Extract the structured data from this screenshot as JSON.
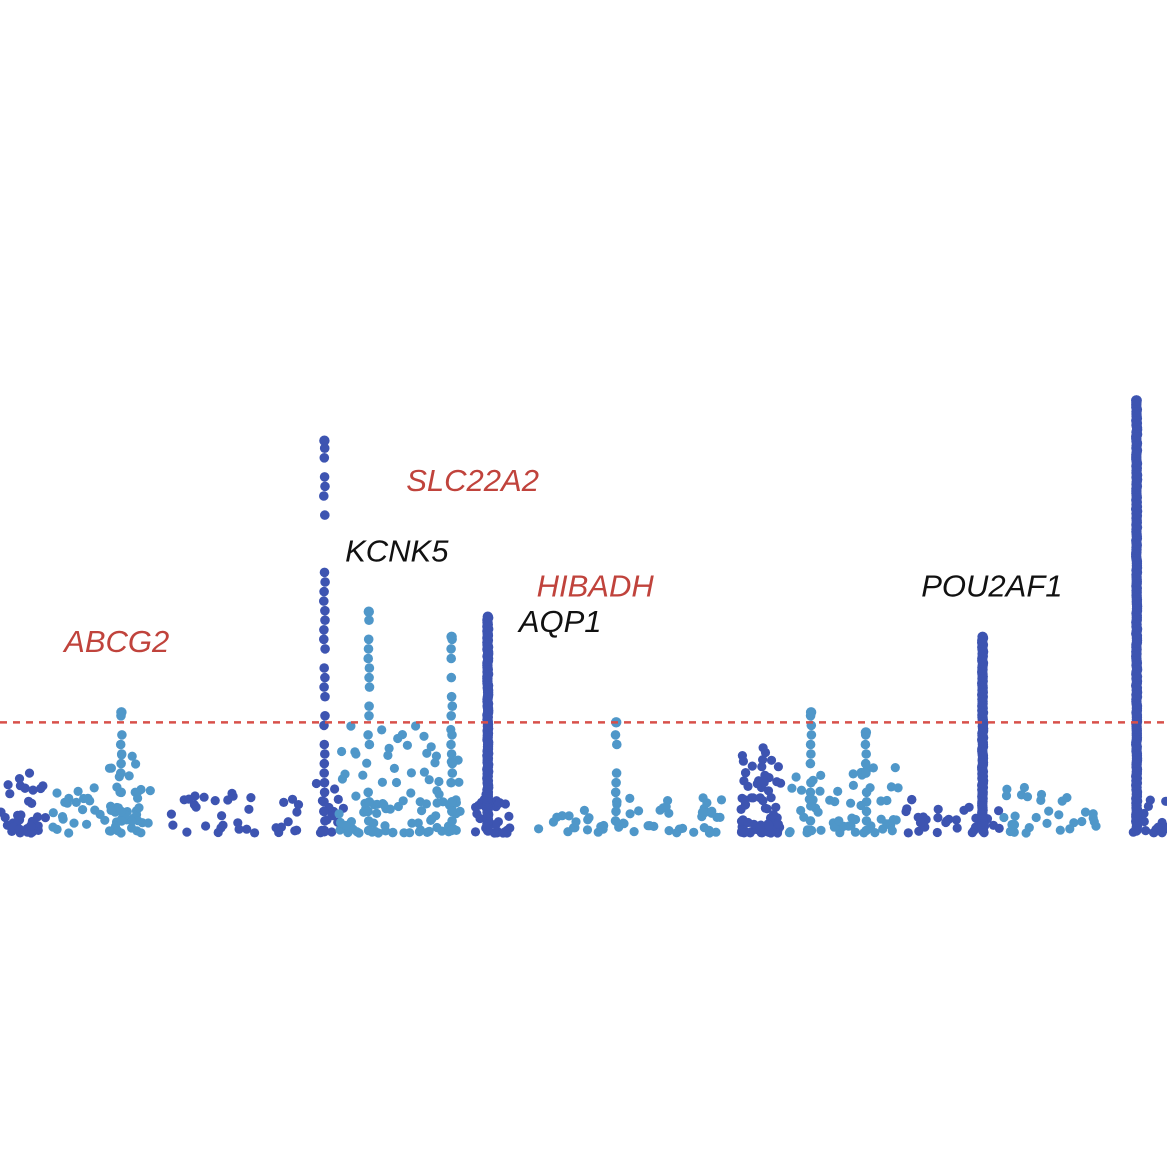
{
  "colors": {
    "background": "#ffffff",
    "dark_blue": "#3d54b1",
    "light_blue": "#4f97c9",
    "threshold": "#d8504a",
    "label_red": "#c0433c",
    "label_black": "#111111"
  },
  "chart_data": {
    "type": "scatter",
    "subtype": "manhattan",
    "title": "",
    "xlabel": "",
    "ylabel": "",
    "grid": false,
    "legend": "none",
    "axes_visible": false,
    "ylim": [
      0,
      10
    ],
    "threshold": 2.2,
    "annotations": [
      {
        "text": "ABCG2",
        "color": "label_red",
        "x": 10,
        "y": 3.6
      },
      {
        "text": "SLC22A2",
        "color": "label_red",
        "x": 40.5,
        "y": 6.8
      },
      {
        "text": "KCNK5",
        "color": "label_black",
        "x": 34,
        "y": 5.4
      },
      {
        "text": "HIBADH",
        "color": "label_red",
        "x": 51,
        "y": 4.7
      },
      {
        "text": "AQP1",
        "color": "label_black",
        "x": 48,
        "y": 4.0
      },
      {
        "text": "POU2AF1",
        "color": "label_black",
        "x": 85,
        "y": 4.7
      }
    ],
    "peaks": [
      {
        "x": 27.8,
        "top": 7.8,
        "color": "dark_blue",
        "style": "sparse"
      },
      {
        "x": 41.8,
        "top": 4.3,
        "color": "dark_blue",
        "style": "dense"
      },
      {
        "x": 84.2,
        "top": 3.9,
        "color": "dark_blue",
        "style": "dense"
      },
      {
        "x": 97.4,
        "top": 8.6,
        "color": "dark_blue",
        "style": "dense"
      },
      {
        "x": 10.4,
        "top": 2.4,
        "color": "light_blue",
        "style": "sparse"
      },
      {
        "x": 31.6,
        "top": 4.4,
        "color": "light_blue",
        "style": "sparse"
      },
      {
        "x": 38.7,
        "top": 3.9,
        "color": "light_blue",
        "style": "sparse"
      },
      {
        "x": 52.8,
        "top": 2.2,
        "color": "light_blue",
        "style": "sparse"
      },
      {
        "x": 69.5,
        "top": 2.4,
        "color": "light_blue",
        "style": "sparse"
      },
      {
        "x": 74.2,
        "top": 2.0,
        "color": "light_blue",
        "style": "sparse"
      }
    ],
    "clusters": [
      {
        "x0": 0.0,
        "x1": 4.0,
        "ymax": 1.2,
        "color": "dark_blue",
        "n": 40
      },
      {
        "x0": 4.5,
        "x1": 9.0,
        "ymax": 0.9,
        "color": "light_blue",
        "n": 22
      },
      {
        "x0": 9.0,
        "x1": 13.0,
        "ymax": 1.6,
        "color": "light_blue",
        "n": 40
      },
      {
        "x0": 14.5,
        "x1": 22.0,
        "ymax": 0.8,
        "color": "dark_blue",
        "n": 24
      },
      {
        "x0": 23.5,
        "x1": 26.0,
        "ymax": 0.8,
        "color": "dark_blue",
        "n": 10
      },
      {
        "x0": 27.0,
        "x1": 29.5,
        "ymax": 1.0,
        "color": "dark_blue",
        "n": 16
      },
      {
        "x0": 29.0,
        "x1": 39.5,
        "ymax": 2.2,
        "color": "light_blue",
        "n": 95
      },
      {
        "x0": 40.5,
        "x1": 44.0,
        "ymax": 0.8,
        "color": "dark_blue",
        "n": 30
      },
      {
        "x0": 46.0,
        "x1": 62.0,
        "ymax": 0.7,
        "color": "light_blue",
        "n": 55
      },
      {
        "x0": 63.5,
        "x1": 67.0,
        "ymax": 1.8,
        "color": "dark_blue",
        "n": 70
      },
      {
        "x0": 67.5,
        "x1": 77.0,
        "ymax": 1.4,
        "color": "light_blue",
        "n": 60
      },
      {
        "x0": 77.5,
        "x1": 80.5,
        "ymax": 0.7,
        "color": "dark_blue",
        "n": 14
      },
      {
        "x0": 81.0,
        "x1": 86.0,
        "ymax": 0.6,
        "color": "dark_blue",
        "n": 22
      },
      {
        "x0": 86.0,
        "x1": 94.5,
        "ymax": 1.0,
        "color": "light_blue",
        "n": 30
      },
      {
        "x0": 96.5,
        "x1": 100.0,
        "ymax": 0.7,
        "color": "dark_blue",
        "n": 20
      }
    ]
  }
}
